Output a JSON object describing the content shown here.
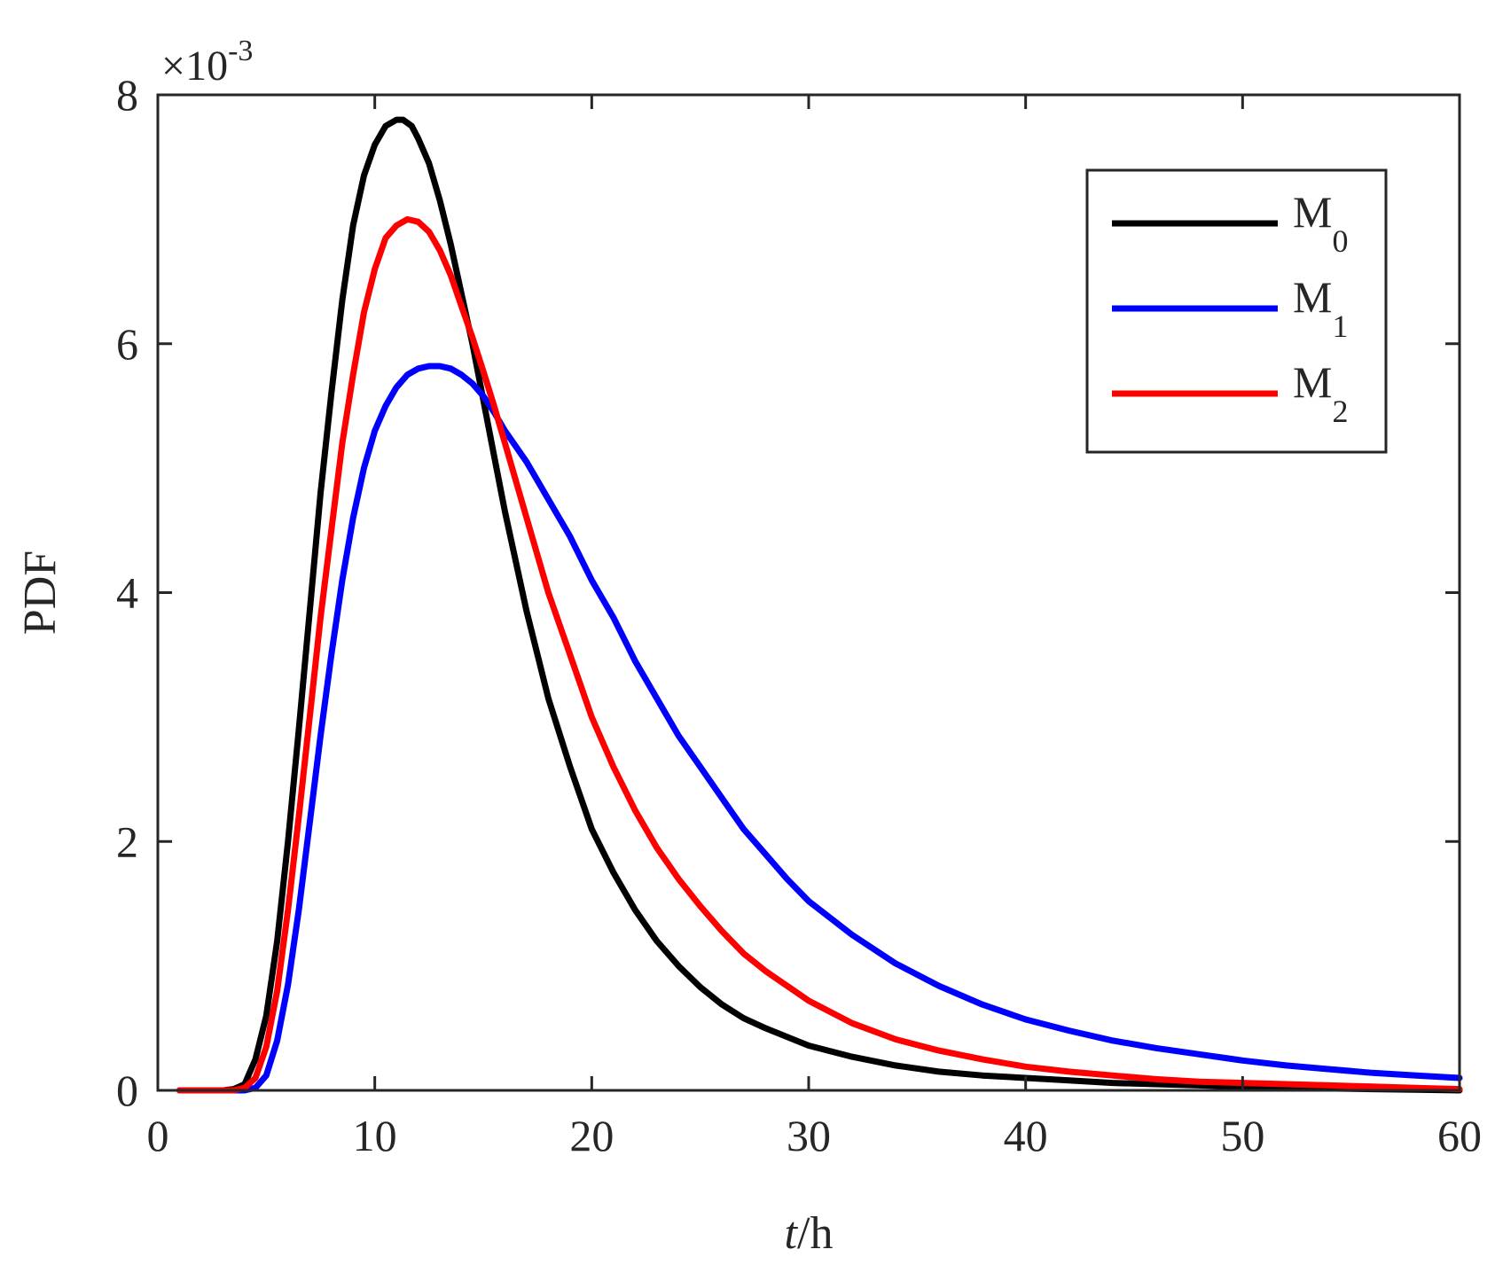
{
  "chart_data": {
    "type": "line",
    "title": "",
    "xlabel": {
      "italic": "t",
      "rest": "/h"
    },
    "ylabel": "PDF",
    "xlim": [
      0,
      60
    ],
    "ylim": [
      0,
      8
    ],
    "xticks": [
      0,
      10,
      20,
      30,
      40,
      50,
      60
    ],
    "yticks": [
      0,
      2,
      4,
      6,
      8
    ],
    "y_scale_factor": {
      "base": "×10",
      "exponent": "-3"
    },
    "grid": false,
    "legend_position": "top-right",
    "series": [
      {
        "name": "M0",
        "label_main": "M",
        "label_sub": "0",
        "color": "#000000",
        "x": [
          1,
          3,
          3.5,
          4,
          4.5,
          5,
          5.5,
          6,
          6.5,
          7,
          7.5,
          8,
          8.5,
          9,
          9.5,
          10,
          10.5,
          11,
          11.3,
          11.7,
          12,
          12.5,
          13,
          13.5,
          14,
          14.5,
          15,
          15.5,
          16,
          16.5,
          17,
          17.5,
          18,
          19,
          20,
          21,
          22,
          23,
          24,
          25,
          26,
          27,
          28,
          30,
          32,
          34,
          36,
          38,
          40,
          42,
          44,
          46,
          48,
          50,
          52,
          54,
          56,
          58,
          60
        ],
        "y": [
          0,
          0,
          0.01,
          0.05,
          0.25,
          0.6,
          1.2,
          2.0,
          2.9,
          3.85,
          4.8,
          5.6,
          6.35,
          6.95,
          7.35,
          7.6,
          7.75,
          7.8,
          7.8,
          7.75,
          7.65,
          7.45,
          7.15,
          6.8,
          6.4,
          6.0,
          5.55,
          5.1,
          4.65,
          4.25,
          3.85,
          3.5,
          3.15,
          2.6,
          2.1,
          1.75,
          1.45,
          1.2,
          1.0,
          0.83,
          0.69,
          0.58,
          0.5,
          0.36,
          0.27,
          0.2,
          0.15,
          0.12,
          0.1,
          0.08,
          0.06,
          0.05,
          0.04,
          0.03,
          0.02,
          0.015,
          0.01,
          0.005,
          0
        ]
      },
      {
        "name": "M1",
        "label_main": "M",
        "label_sub": "1",
        "color": "#0000ff",
        "x": [
          1,
          3,
          4,
          4.5,
          5,
          5.5,
          6,
          6.5,
          7,
          7.5,
          8,
          8.5,
          9,
          9.5,
          10,
          10.5,
          11,
          11.5,
          12,
          12.5,
          13,
          13.5,
          14,
          14.5,
          15,
          15.5,
          16,
          17,
          18,
          19,
          20,
          21,
          22,
          23,
          24,
          25,
          26,
          27,
          28,
          29,
          30,
          32,
          34,
          36,
          38,
          40,
          42,
          44,
          46,
          48,
          50,
          52,
          54,
          56,
          58,
          60
        ],
        "y": [
          0,
          0,
          0,
          0.02,
          0.12,
          0.4,
          0.85,
          1.45,
          2.15,
          2.85,
          3.5,
          4.1,
          4.6,
          5.0,
          5.3,
          5.5,
          5.65,
          5.75,
          5.8,
          5.82,
          5.82,
          5.8,
          5.75,
          5.68,
          5.58,
          5.45,
          5.3,
          5.05,
          4.75,
          4.45,
          4.1,
          3.8,
          3.45,
          3.15,
          2.85,
          2.6,
          2.35,
          2.1,
          1.9,
          1.7,
          1.52,
          1.25,
          1.02,
          0.84,
          0.69,
          0.57,
          0.48,
          0.4,
          0.34,
          0.29,
          0.24,
          0.2,
          0.17,
          0.14,
          0.12,
          0.1
        ]
      },
      {
        "name": "M2",
        "label_main": "M",
        "label_sub": "2",
        "color": "#ff0000",
        "x": [
          1,
          3.5,
          4,
          4.5,
          5,
          5.5,
          6,
          6.5,
          7,
          7.5,
          8,
          8.5,
          9,
          9.5,
          10,
          10.5,
          11,
          11.5,
          12,
          12.5,
          13,
          13.5,
          14,
          14.5,
          15,
          15.5,
          16,
          17,
          18,
          19,
          20,
          21,
          22,
          23,
          24,
          25,
          26,
          27,
          28,
          30,
          32,
          34,
          36,
          38,
          40,
          42,
          44,
          46,
          48,
          50,
          52,
          54,
          56,
          58,
          60
        ],
        "y": [
          0,
          0,
          0.02,
          0.1,
          0.35,
          0.8,
          1.45,
          2.2,
          3.0,
          3.8,
          4.5,
          5.2,
          5.75,
          6.25,
          6.6,
          6.85,
          6.95,
          7.0,
          6.98,
          6.9,
          6.75,
          6.55,
          6.3,
          6.05,
          5.78,
          5.5,
          5.2,
          4.6,
          4.0,
          3.5,
          3.0,
          2.6,
          2.25,
          1.95,
          1.7,
          1.48,
          1.28,
          1.1,
          0.96,
          0.72,
          0.54,
          0.41,
          0.32,
          0.25,
          0.19,
          0.15,
          0.12,
          0.09,
          0.07,
          0.06,
          0.05,
          0.04,
          0.03,
          0.02,
          0.01
        ]
      }
    ]
  }
}
